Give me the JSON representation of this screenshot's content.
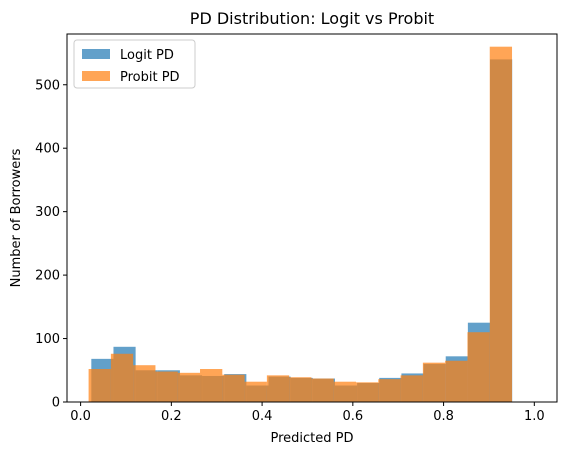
{
  "chart_data": {
    "type": "bar",
    "subtype": "overlapping-histogram",
    "title": "PD Distribution: Logit vs Probit",
    "xlabel": "Predicted PD",
    "ylabel": "Number of Borrowers",
    "xlim": [
      -0.03,
      1.05
    ],
    "ylim": [
      0,
      580
    ],
    "xticks": [
      0.0,
      0.2,
      0.4,
      0.6,
      0.8,
      1.0
    ],
    "xtick_labels": [
      "0.0",
      "0.2",
      "0.4",
      "0.6",
      "0.8",
      "1.0"
    ],
    "yticks": [
      0,
      100,
      200,
      300,
      400,
      500
    ],
    "ytick_labels": [
      "0",
      "100",
      "200",
      "300",
      "400",
      "500"
    ],
    "grid": false,
    "legend_position": "top-left",
    "series": [
      {
        "name": "Logit PD",
        "color": "#1f77b4",
        "alpha": 0.7,
        "bin_start": 0.0236,
        "bin_width": 0.04882,
        "values": [
          68,
          87,
          50,
          50,
          42,
          41,
          44,
          26,
          40,
          38,
          37,
          26,
          30,
          38,
          45,
          60,
          72,
          125,
          540
        ]
      },
      {
        "name": "Probit PD",
        "color": "#ff7f0e",
        "alpha": 0.7,
        "bin_start": 0.0176,
        "bin_width": 0.04912,
        "values": [
          52,
          76,
          58,
          48,
          46,
          52,
          43,
          32,
          42,
          39,
          37,
          32,
          31,
          36,
          42,
          62,
          65,
          110,
          560
        ]
      }
    ]
  }
}
